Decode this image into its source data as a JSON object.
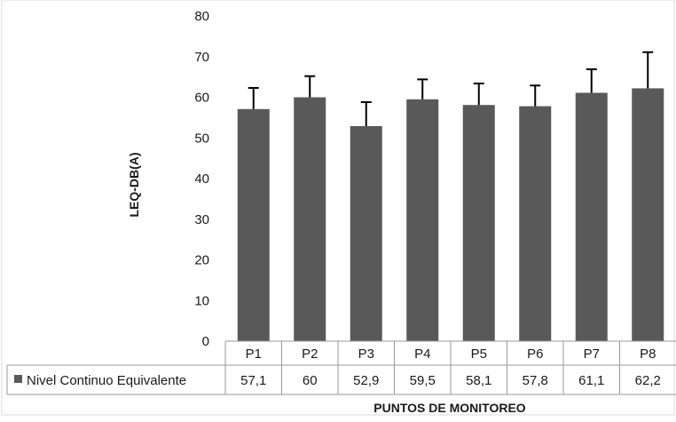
{
  "chart_data": {
    "type": "bar",
    "categories": [
      "P1",
      "P2",
      "P3",
      "P4",
      "P5",
      "P6",
      "P7",
      "P8"
    ],
    "series": [
      {
        "name": "Nivel Continuo Equivalente",
        "values": [
          57.1,
          60,
          52.9,
          59.5,
          58.1,
          57.8,
          61.1,
          62.2
        ],
        "value_labels": [
          "57,1",
          "60",
          "52,9",
          "59,5",
          "58,1",
          "57,8",
          "61,1",
          "62,2"
        ],
        "error_upper": [
          62.3,
          65.2,
          58.8,
          64.4,
          63.4,
          62.9,
          66.9,
          71.1
        ],
        "color": "#595959"
      }
    ],
    "title": "",
    "xlabel": "PUNTOS DE MONITOREO",
    "ylabel": "LEQ-DB(A)",
    "ylim": [
      0,
      80
    ],
    "yticks": [
      0,
      10,
      20,
      30,
      40,
      50,
      60,
      70,
      80
    ],
    "grid": false,
    "legend": "data-table"
  }
}
